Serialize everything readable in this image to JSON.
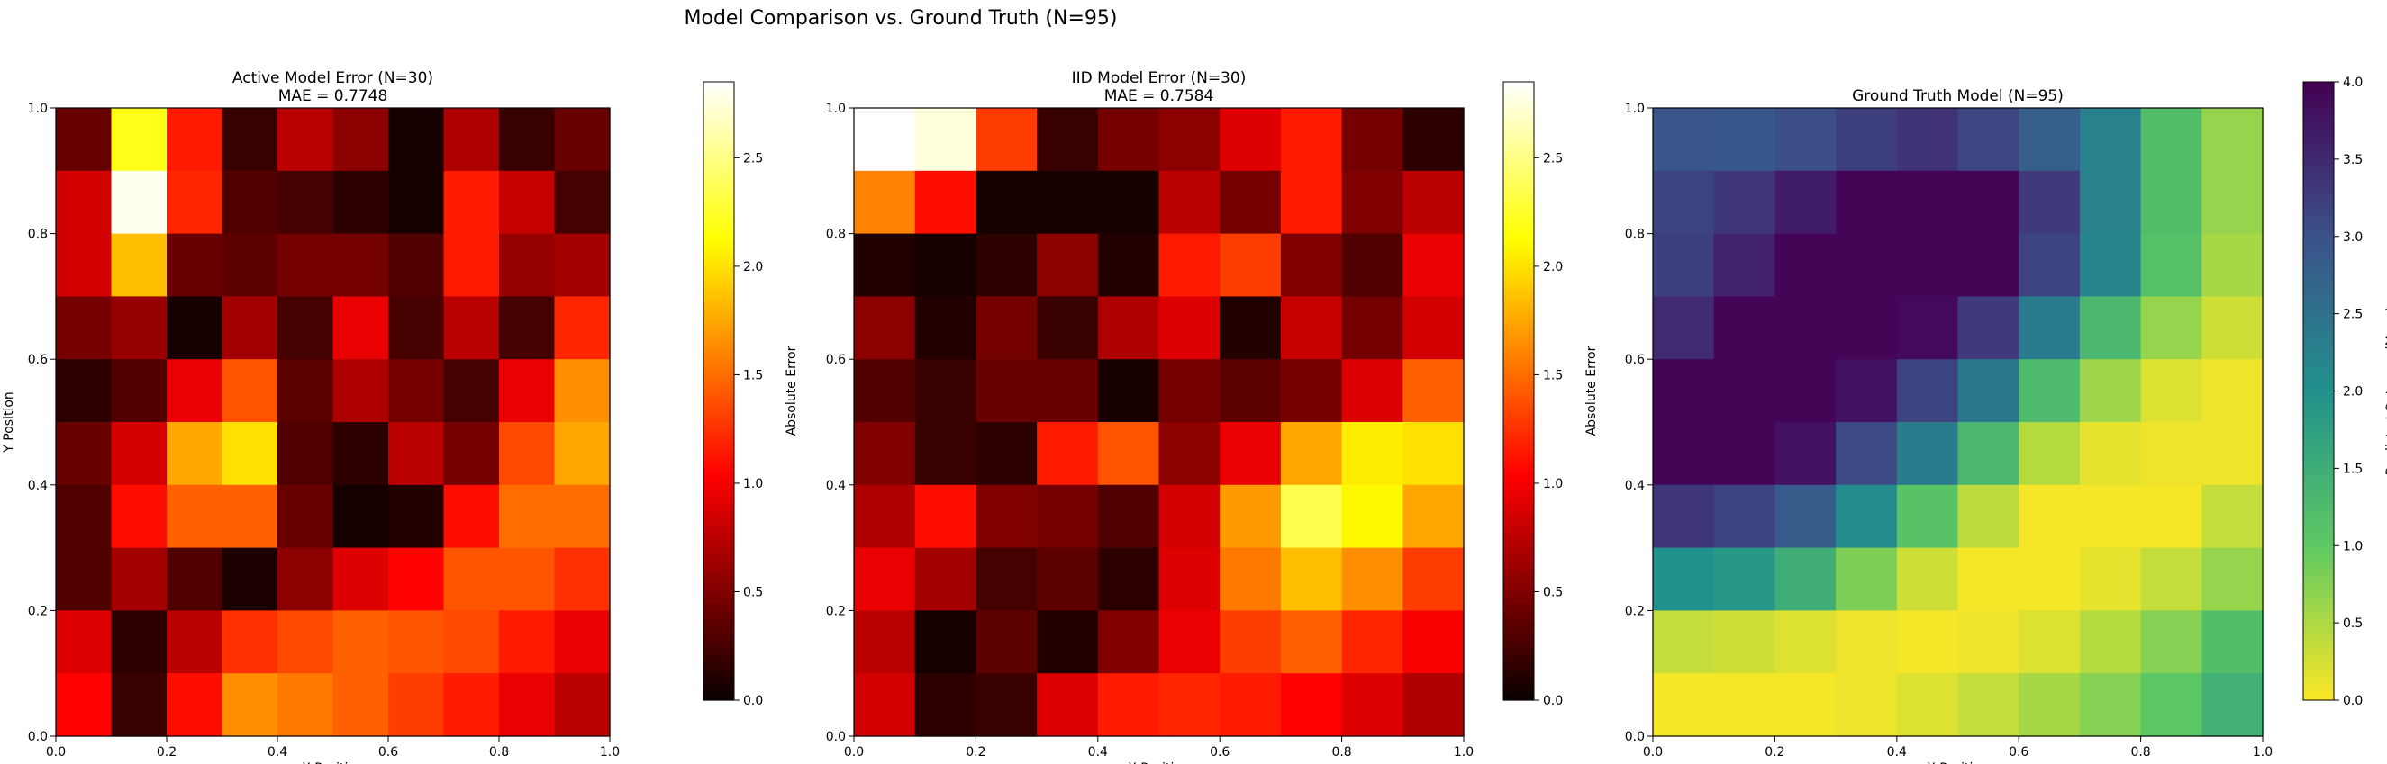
{
  "figure": {
    "suptitle": "Model Comparison vs. Ground Truth (N=95)"
  },
  "chart_data": [
    {
      "type": "heatmap",
      "title_line1": "Active Model Error (N=30)",
      "title_line2": "MAE = 0.7748",
      "xlabel": "X Position",
      "ylabel": "Y Position",
      "xlim": [
        0,
        1
      ],
      "ylim": [
        0,
        1
      ],
      "x_ticks": [
        "0.0",
        "0.2",
        "0.4",
        "0.6",
        "0.8",
        "1.0"
      ],
      "y_ticks": [
        "0.0",
        "0.2",
        "0.4",
        "0.6",
        "0.8",
        "1.0"
      ],
      "colormap": "hot",
      "colorbar": {
        "label": "Absolute Error",
        "range": [
          0,
          2.85
        ],
        "ticks": [
          "0.0",
          "0.5",
          "1.0",
          "1.5",
          "2.0",
          "2.5"
        ],
        "tick_values": [
          0,
          0.5,
          1.0,
          1.5,
          2.0,
          2.5
        ]
      },
      "grid_rows_top_to_bottom": [
        [
          0.4,
          2.2,
          1.15,
          0.2,
          0.75,
          0.55,
          0.05,
          0.7,
          0.2,
          0.4
        ],
        [
          0.85,
          2.8,
          1.2,
          0.3,
          0.25,
          0.15,
          0.05,
          1.15,
          0.8,
          0.25
        ],
        [
          0.85,
          1.85,
          0.4,
          0.35,
          0.45,
          0.45,
          0.3,
          1.15,
          0.6,
          0.65
        ],
        [
          0.45,
          0.6,
          0.05,
          0.65,
          0.25,
          0.95,
          0.25,
          0.75,
          0.25,
          1.2
        ],
        [
          0.15,
          0.3,
          0.95,
          1.4,
          0.35,
          0.7,
          0.45,
          0.25,
          0.95,
          1.65
        ],
        [
          0.4,
          0.85,
          1.75,
          2.0,
          0.3,
          0.15,
          0.75,
          0.45,
          1.35,
          1.75
        ],
        [
          0.3,
          1.1,
          1.45,
          1.45,
          0.4,
          0.05,
          0.1,
          1.1,
          1.5,
          1.5
        ],
        [
          0.3,
          0.65,
          0.3,
          0.08,
          0.55,
          0.9,
          1.05,
          1.4,
          1.4,
          1.25
        ],
        [
          0.9,
          0.15,
          0.75,
          1.25,
          1.35,
          1.45,
          1.4,
          1.35,
          1.15,
          0.95
        ],
        [
          1.05,
          0.2,
          1.1,
          1.65,
          1.55,
          1.45,
          1.3,
          1.15,
          0.95,
          0.75
        ]
      ]
    },
    {
      "type": "heatmap",
      "title_line1": "IID Model Error (N=30)",
      "title_line2": "MAE = 0.7584",
      "xlabel": "X Position",
      "ylabel": "",
      "xlim": [
        0,
        1
      ],
      "ylim": [
        0,
        1
      ],
      "x_ticks": [
        "0.0",
        "0.2",
        "0.4",
        "0.6",
        "0.8",
        "1.0"
      ],
      "y_ticks": [
        "0.0",
        "0.2",
        "0.4",
        "0.6",
        "0.8",
        "1.0"
      ],
      "colormap": "hot",
      "colorbar": {
        "label": "Absolute Error",
        "range": [
          0,
          2.85
        ],
        "ticks": [
          "0.0",
          "0.5",
          "1.0",
          "1.5",
          "2.0",
          "2.5"
        ],
        "tick_values": [
          0,
          0.5,
          1.0,
          1.5,
          2.0,
          2.5
        ]
      },
      "grid_rows_top_to_bottom": [
        [
          2.85,
          2.75,
          1.3,
          0.2,
          0.45,
          0.55,
          0.9,
          1.15,
          0.45,
          0.15
        ],
        [
          1.6,
          1.1,
          0.05,
          0.05,
          0.05,
          0.75,
          0.45,
          1.15,
          0.5,
          0.75
        ],
        [
          0.1,
          0.05,
          0.15,
          0.55,
          0.1,
          1.15,
          1.3,
          0.5,
          0.3,
          0.95
        ],
        [
          0.55,
          0.1,
          0.45,
          0.2,
          0.7,
          0.9,
          0.1,
          0.8,
          0.45,
          0.85
        ],
        [
          0.3,
          0.2,
          0.4,
          0.4,
          0.05,
          0.45,
          0.35,
          0.45,
          0.9,
          1.45
        ],
        [
          0.5,
          0.2,
          0.15,
          1.15,
          1.4,
          0.55,
          0.95,
          1.75,
          2.05,
          2.0
        ],
        [
          0.7,
          1.1,
          0.5,
          0.45,
          0.3,
          0.85,
          1.7,
          2.35,
          2.1,
          1.75
        ],
        [
          0.95,
          0.65,
          0.25,
          0.35,
          0.15,
          0.9,
          1.55,
          1.85,
          1.65,
          1.3
        ],
        [
          0.75,
          0.05,
          0.35,
          0.1,
          0.5,
          0.95,
          1.3,
          1.45,
          1.2,
          1.0
        ],
        [
          0.85,
          0.15,
          0.2,
          0.9,
          1.15,
          1.2,
          1.15,
          1.05,
          0.9,
          0.7
        ]
      ]
    },
    {
      "type": "heatmap",
      "title_line1": "Ground Truth Model (N=95)",
      "title_line2": "",
      "xlabel": "X Position",
      "ylabel": "",
      "xlim": [
        0,
        1
      ],
      "ylim": [
        0,
        1
      ],
      "x_ticks": [
        "0.0",
        "0.2",
        "0.4",
        "0.6",
        "0.8",
        "1.0"
      ],
      "y_ticks": [
        "0.0",
        "0.2",
        "0.4",
        "0.6",
        "0.8",
        "1.0"
      ],
      "colormap": "viridis_r",
      "colorbar": {
        "label": "Predicted Outcome (Mean)",
        "range": [
          0,
          4.0
        ],
        "ticks": [
          "0.0",
          "0.5",
          "1.0",
          "1.5",
          "2.0",
          "2.5",
          "3.0",
          "3.5",
          "4.0"
        ],
        "tick_values": [
          0,
          0.5,
          1.0,
          1.5,
          2.0,
          2.5,
          3.0,
          3.5,
          4.0
        ]
      },
      "grid_rows_top_to_bottom": [
        [
          2.95,
          2.9,
          3.05,
          3.25,
          3.4,
          3.15,
          2.8,
          2.25,
          1.2,
          0.65
        ],
        [
          3.2,
          3.35,
          3.65,
          3.95,
          3.95,
          3.95,
          3.3,
          2.25,
          1.2,
          0.65
        ],
        [
          3.25,
          3.6,
          3.95,
          3.95,
          3.95,
          3.95,
          3.2,
          2.2,
          1.15,
          0.55
        ],
        [
          3.5,
          3.95,
          3.95,
          3.95,
          3.9,
          3.3,
          2.35,
          1.3,
          0.65,
          0.3
        ],
        [
          3.95,
          3.95,
          3.95,
          3.8,
          3.2,
          2.4,
          1.25,
          0.6,
          0.2,
          0.1
        ],
        [
          3.95,
          3.95,
          3.8,
          3.1,
          2.35,
          1.3,
          0.45,
          0.15,
          0.1,
          0.1
        ],
        [
          3.35,
          3.2,
          2.85,
          2.1,
          1.1,
          0.4,
          0.05,
          0.05,
          0.05,
          0.35
        ],
        [
          2.0,
          1.9,
          1.5,
          0.8,
          0.3,
          0.05,
          0.05,
          0.15,
          0.35,
          0.65
        ],
        [
          0.35,
          0.3,
          0.2,
          0.1,
          0.05,
          0.1,
          0.2,
          0.45,
          0.75,
          1.2
        ],
        [
          0.05,
          0.05,
          0.05,
          0.1,
          0.2,
          0.35,
          0.55,
          0.75,
          1.05,
          1.45
        ]
      ]
    }
  ]
}
